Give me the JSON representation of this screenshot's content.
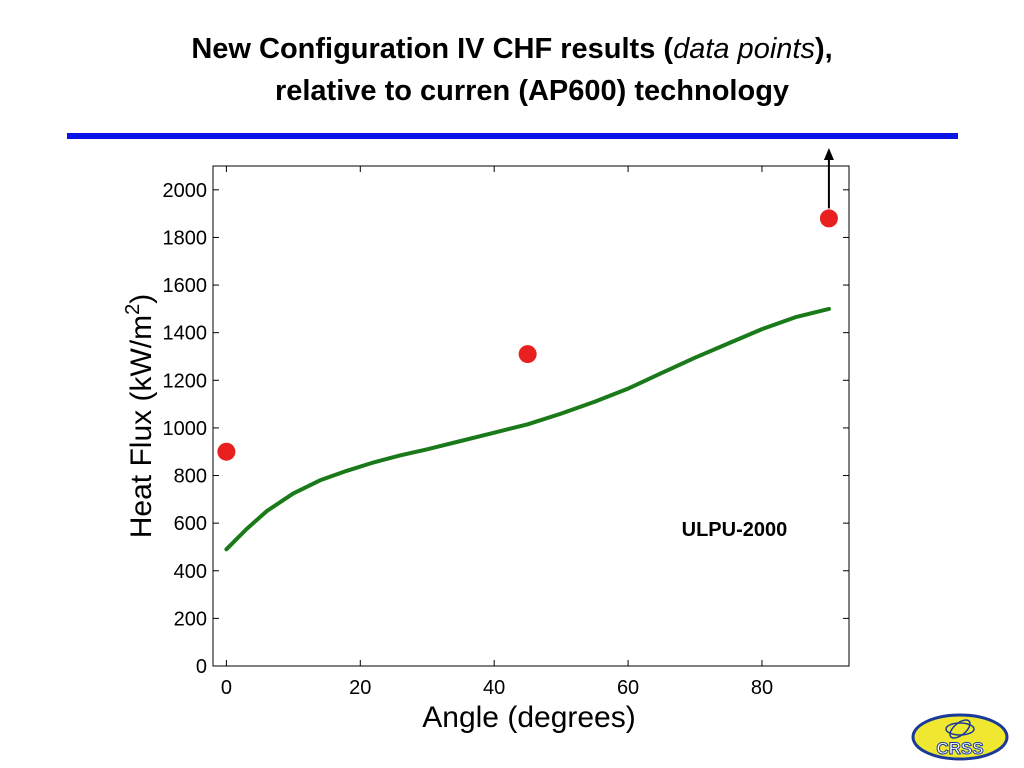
{
  "title": {
    "part1": "New Configuration IV CHF results (",
    "italic": "data points",
    "part2": "),",
    "line2": "relative to curren (AP600) technology"
  },
  "colors": {
    "rule": "#0a14e6",
    "curve": "#1a7a1a",
    "points": "#e82020",
    "logo_fill": "#f0e830",
    "logo_outline": "#1a3a9a"
  },
  "logo_text": "CRSS",
  "chart_data": {
    "type": "scatter",
    "xlabel": "Angle (degrees)",
    "ylabel": "Heat Flux (kW/m",
    "ylabel_sup": "2",
    "ylabel_end": ")",
    "xlim": [
      -2,
      93
    ],
    "ylim": [
      0,
      2100
    ],
    "xticks": [
      0,
      20,
      40,
      60,
      80
    ],
    "yticks": [
      0,
      200,
      400,
      600,
      800,
      1000,
      1200,
      1400,
      1600,
      1800,
      2000
    ],
    "grid": false,
    "series": [
      {
        "kind": "line",
        "name": "ULPU-2000",
        "x": [
          0,
          3,
          6,
          10,
          14,
          18,
          22,
          26,
          30,
          35,
          40,
          45,
          50,
          55,
          60,
          65,
          70,
          75,
          80,
          85,
          90
        ],
        "y": [
          490,
          575,
          650,
          725,
          780,
          820,
          855,
          885,
          910,
          945,
          980,
          1015,
          1060,
          1110,
          1165,
          1230,
          1295,
          1355,
          1415,
          1465,
          1500
        ]
      },
      {
        "kind": "points",
        "x": [
          0,
          45,
          90
        ],
        "y": [
          900,
          1310,
          1880
        ]
      }
    ],
    "annotation": {
      "text": "ULPU-2000",
      "x": 68,
      "y": 545
    },
    "arrow": {
      "x": 90,
      "y_from": 1880,
      "y_to": 2100
    }
  }
}
